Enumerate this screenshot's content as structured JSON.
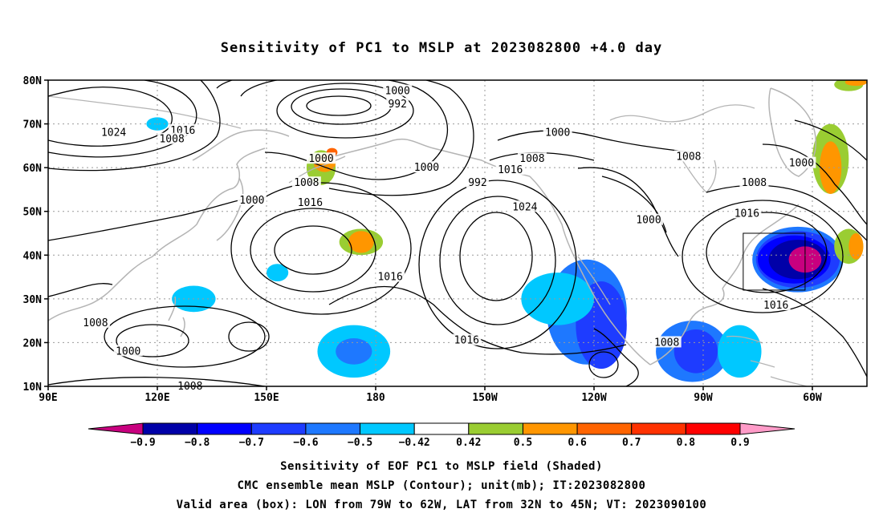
{
  "title": "Sensitivity of PC1 to MSLP at 2023082800 +4.0 day",
  "map": {
    "lat_labels": [
      "80N",
      "70N",
      "60N",
      "50N",
      "40N",
      "30N",
      "20N",
      "10N"
    ],
    "lon_labels": [
      "90E",
      "120E",
      "150E",
      "180",
      "150W",
      "120W",
      "90W",
      "60W"
    ],
    "lon_range": [
      90,
      315
    ],
    "lat_range": [
      10,
      80
    ],
    "valid_box": {
      "lon": [
        -79,
        -62
      ],
      "lat": [
        32,
        45
      ]
    },
    "isobar_labels": [
      {
        "text": "1000",
        "lon": 186,
        "lat": 77.5
      },
      {
        "text": "992",
        "lon": 186,
        "lat": 74.5
      },
      {
        "text": "1024",
        "lon": 108,
        "lat": 68
      },
      {
        "text": "1016",
        "lon": 127,
        "lat": 68.5
      },
      {
        "text": "1008",
        "lon": 124,
        "lat": 66.5
      },
      {
        "text": "1000",
        "lon": 165,
        "lat": 62
      },
      {
        "text": "1000",
        "lon": 194,
        "lat": 60
      },
      {
        "text": "992",
        "lon": 208,
        "lat": 56.5
      },
      {
        "text": "1016",
        "lon": 217,
        "lat": 59.5
      },
      {
        "text": "1008",
        "lon": 223,
        "lat": 62
      },
      {
        "text": "1000",
        "lon": 230,
        "lat": 68
      },
      {
        "text": "1008",
        "lon": 161,
        "lat": 56.5
      },
      {
        "text": "1016",
        "lon": 162,
        "lat": 52
      },
      {
        "text": "1000",
        "lon": 146,
        "lat": 52.5
      },
      {
        "text": "1024",
        "lon": 221,
        "lat": 51
      },
      {
        "text": "1008",
        "lon": 266,
        "lat": 62.5
      },
      {
        "text": "1008",
        "lon": 284,
        "lat": 56.5
      },
      {
        "text": "1000",
        "lon": 297,
        "lat": 61
      },
      {
        "text": "1016",
        "lon": 282,
        "lat": 49.5
      },
      {
        "text": "1000",
        "lon": 255,
        "lat": 48
      },
      {
        "text": "1016",
        "lon": 184,
        "lat": 35
      },
      {
        "text": "1016",
        "lon": 205,
        "lat": 20.5
      },
      {
        "text": "1008",
        "lon": 103,
        "lat": 24.5
      },
      {
        "text": "1000",
        "lon": 112,
        "lat": 18
      },
      {
        "text": "1008",
        "lon": 129,
        "lat": 10
      },
      {
        "text": "1016",
        "lon": 290,
        "lat": 28.5
      },
      {
        "text": "1008",
        "lon": 260,
        "lat": 20
      }
    ],
    "shading": [
      {
        "value": -0.9,
        "lon": 298,
        "lat": 39,
        "rx": 4.5,
        "ry": 3
      },
      {
        "value": -0.8,
        "lon": 296,
        "lat": 39,
        "rx": 8,
        "ry": 4.5
      },
      {
        "value": -0.7,
        "lon": 295,
        "lat": 39,
        "rx": 10,
        "ry": 5.5
      },
      {
        "value": -0.6,
        "lon": 296,
        "lat": 39,
        "rx": 11.5,
        "ry": 6.5
      },
      {
        "value": -0.5,
        "lon": 296,
        "lat": 39,
        "rx": 12.5,
        "ry": 7.5
      },
      {
        "value": -0.6,
        "lon": 242,
        "lat": 24,
        "rx": 7,
        "ry": 10
      },
      {
        "value": -0.5,
        "lon": 238,
        "lat": 27,
        "rx": 11,
        "ry": 12
      },
      {
        "value": -0.42,
        "lon": 230,
        "lat": 30,
        "rx": 10,
        "ry": 6
      },
      {
        "value": -0.6,
        "lon": 268,
        "lat": 18,
        "rx": 6,
        "ry": 5
      },
      {
        "value": -0.5,
        "lon": 267,
        "lat": 18,
        "rx": 10,
        "ry": 7
      },
      {
        "value": -0.42,
        "lon": 280,
        "lat": 18,
        "rx": 6,
        "ry": 6
      },
      {
        "value": -0.42,
        "lon": 174,
        "lat": 18,
        "rx": 10,
        "ry": 6
      },
      {
        "value": -0.5,
        "lon": 174,
        "lat": 18,
        "rx": 5,
        "ry": 3
      },
      {
        "value": -0.42,
        "lon": 130,
        "lat": 30,
        "rx": 6,
        "ry": 3
      },
      {
        "value": -0.42,
        "lon": 153,
        "lat": 36,
        "rx": 3,
        "ry": 2
      },
      {
        "value": -0.42,
        "lon": 120,
        "lat": 70,
        "rx": 3,
        "ry": 1.5
      },
      {
        "value": 0.42,
        "lon": 165,
        "lat": 60,
        "rx": 4,
        "ry": 4
      },
      {
        "value": 0.42,
        "lon": 176,
        "lat": 43,
        "rx": 6,
        "ry": 3
      },
      {
        "value": 0.5,
        "lon": 176,
        "lat": 43,
        "rx": 3.5,
        "ry": 2.5
      },
      {
        "value": 0.5,
        "lon": 166,
        "lat": 61,
        "rx": 3,
        "ry": 2
      },
      {
        "value": 0.6,
        "lon": 168,
        "lat": 63.5,
        "rx": 1.5,
        "ry": 1
      },
      {
        "value": 0.42,
        "lon": 305,
        "lat": 62,
        "rx": 5,
        "ry": 8
      },
      {
        "value": 0.5,
        "lon": 305,
        "lat": 60,
        "rx": 3,
        "ry": 6
      },
      {
        "value": 0.42,
        "lon": 310,
        "lat": 42,
        "rx": 4,
        "ry": 4
      },
      {
        "value": 0.5,
        "lon": 312,
        "lat": 42,
        "rx": 2,
        "ry": 3
      },
      {
        "value": 0.42,
        "lon": 310,
        "lat": 79,
        "rx": 4,
        "ry": 1.5
      },
      {
        "value": 0.5,
        "lon": 312,
        "lat": 79.5,
        "rx": 3,
        "ry": 0.8
      }
    ]
  },
  "colorbar": {
    "labels": [
      "-0.9",
      "-0.8",
      "-0.7",
      "-0.6",
      "-0.5",
      "-0.42",
      "0.42",
      "0.5",
      "0.6",
      "0.7",
      "0.8",
      "0.9"
    ],
    "colors": [
      "#c8007f",
      "#0000a8",
      "#0000ff",
      "#1e3cff",
      "#1e78ff",
      "#00c8ff",
      "#ffffff",
      "#9acd32",
      "#ff9600",
      "#ff6400",
      "#ff3200",
      "#ff0000",
      "#ff9bc8"
    ]
  },
  "footer": {
    "line1": "Sensitivity of EOF PC1 to MSLP field (Shaded)",
    "line2": "CMC ensemble mean MSLP (Contour); unit(mb); IT:2023082800",
    "line3": "Valid area (box): LON from 79W to 62W, LAT from 32N to 45N; VT: 2023090100"
  }
}
